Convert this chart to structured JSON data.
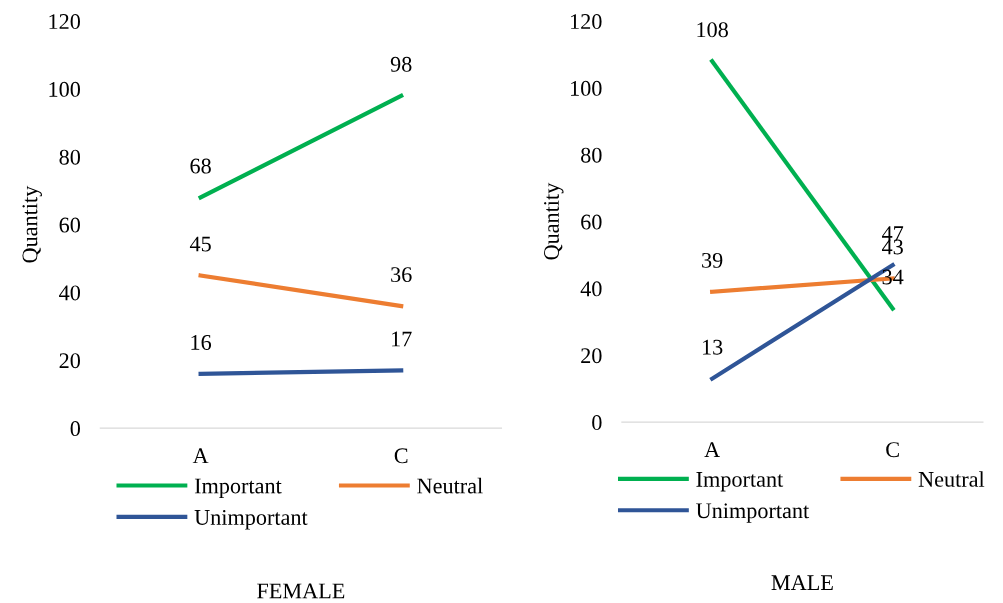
{
  "chart_data": [
    {
      "type": "line",
      "title": "FEMALE",
      "ylabel": "Quantity",
      "categories": [
        "A",
        "C"
      ],
      "ylim": [
        0,
        120
      ],
      "yticks": [
        0,
        20,
        40,
        60,
        80,
        100,
        120
      ],
      "grid": false,
      "legend": "bottom",
      "data_labels": true,
      "marker": "none",
      "series": [
        {
          "name": "Important",
          "color": "#00b050",
          "values": [
            68,
            98
          ]
        },
        {
          "name": "Neutral",
          "color": "#ed7d31",
          "values": [
            45,
            36
          ]
        },
        {
          "name": "Unimportant",
          "color": "#2f5597",
          "values": [
            16,
            17
          ]
        }
      ]
    },
    {
      "type": "line",
      "title": "MALE",
      "ylabel": "Quantity",
      "categories": [
        "A",
        "C"
      ],
      "ylim": [
        0,
        120
      ],
      "yticks": [
        0,
        20,
        40,
        60,
        80,
        100,
        120
      ],
      "grid": false,
      "legend": "bottom",
      "data_labels": true,
      "marker": "none",
      "series": [
        {
          "name": "Important",
          "color": "#00b050",
          "values": [
            108,
            34
          ]
        },
        {
          "name": "Neutral",
          "color": "#ed7d31",
          "values": [
            39,
            43
          ]
        },
        {
          "name": "Unimportant",
          "color": "#2f5597",
          "values": [
            13,
            47
          ]
        }
      ]
    }
  ]
}
